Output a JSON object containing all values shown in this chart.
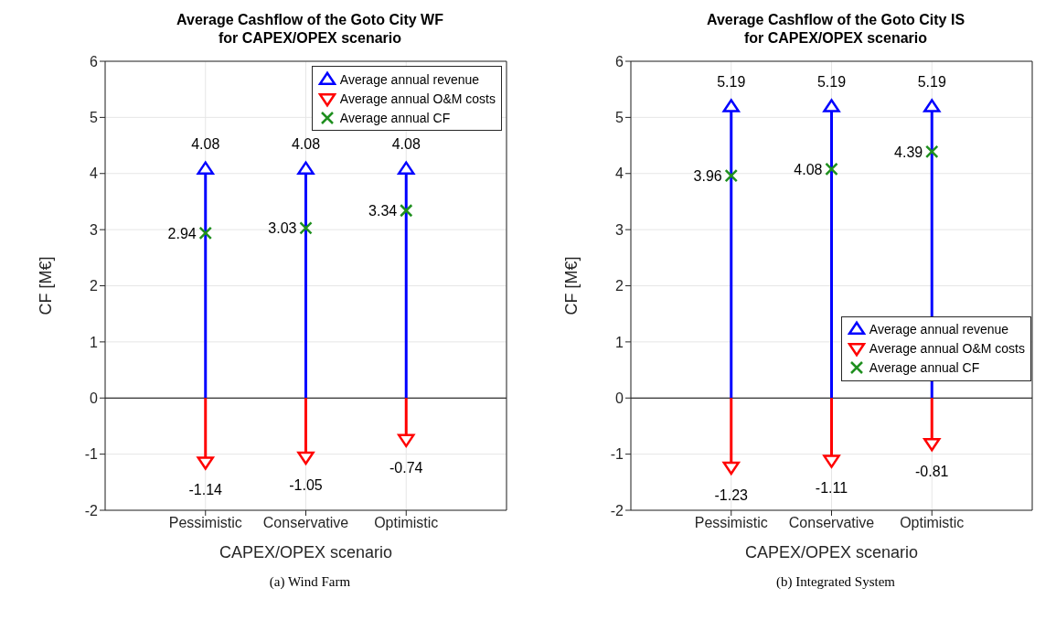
{
  "chart_data": [
    {
      "type": "lollipop",
      "title": "Average Cashflow of the Goto City WF\nfor CAPEX/OPEX scenario",
      "xlabel": "CAPEX/OPEX scenario",
      "ylabel": "CF [M€]",
      "categories": [
        "Pessimistic",
        "Conservative",
        "Optimistic"
      ],
      "ylim": [
        -2,
        6
      ],
      "yticks": [
        -2,
        -1,
        0,
        1,
        2,
        3,
        4,
        5,
        6
      ],
      "grid": true,
      "legend": "top right",
      "data_labels": true,
      "ref_lines": [
        {
          "axis": "y",
          "value": 0,
          "color": "#000000"
        }
      ],
      "annotations": [
        "(a) Wind Farm"
      ],
      "series": [
        {
          "name": "Average annual revenue",
          "marker": "triangle",
          "color": "#0000ff",
          "values": [
            4.08,
            4.08,
            4.08
          ]
        },
        {
          "name": "Average annual O&M costs",
          "marker": "triangle",
          "color": "#ff0000",
          "values": [
            -1.14,
            -1.05,
            -0.74
          ]
        },
        {
          "name": "Average annual CF",
          "type": "scatter",
          "marker": "cross",
          "color": "#1f8f1f",
          "values": [
            2.94,
            3.03,
            3.34
          ]
        }
      ]
    },
    {
      "type": "lollipop",
      "title": "Average Cashflow of the Goto City IS\nfor CAPEX/OPEX scenario",
      "xlabel": "CAPEX/OPEX scenario",
      "ylabel": "CF [M€]",
      "categories": [
        "Pessimistic",
        "Conservative",
        "Optimistic"
      ],
      "ylim": [
        -2,
        6
      ],
      "yticks": [
        -2,
        -1,
        0,
        1,
        2,
        3,
        4,
        5,
        6
      ],
      "grid": true,
      "legend": "right",
      "data_labels": true,
      "ref_lines": [
        {
          "axis": "y",
          "value": 0,
          "color": "#000000"
        }
      ],
      "annotations": [
        "(b) Integrated System"
      ],
      "series": [
        {
          "name": "Average annual revenue",
          "marker": "triangle",
          "color": "#0000ff",
          "values": [
            5.19,
            5.19,
            5.19
          ]
        },
        {
          "name": "Average annual O&M costs",
          "marker": "triangle",
          "color": "#ff0000",
          "values": [
            -1.23,
            -1.11,
            -0.81
          ]
        },
        {
          "name": "Average annual CF",
          "type": "scatter",
          "marker": "cross",
          "color": "#1f8f1f",
          "values": [
            3.96,
            4.08,
            4.39
          ]
        }
      ]
    }
  ]
}
